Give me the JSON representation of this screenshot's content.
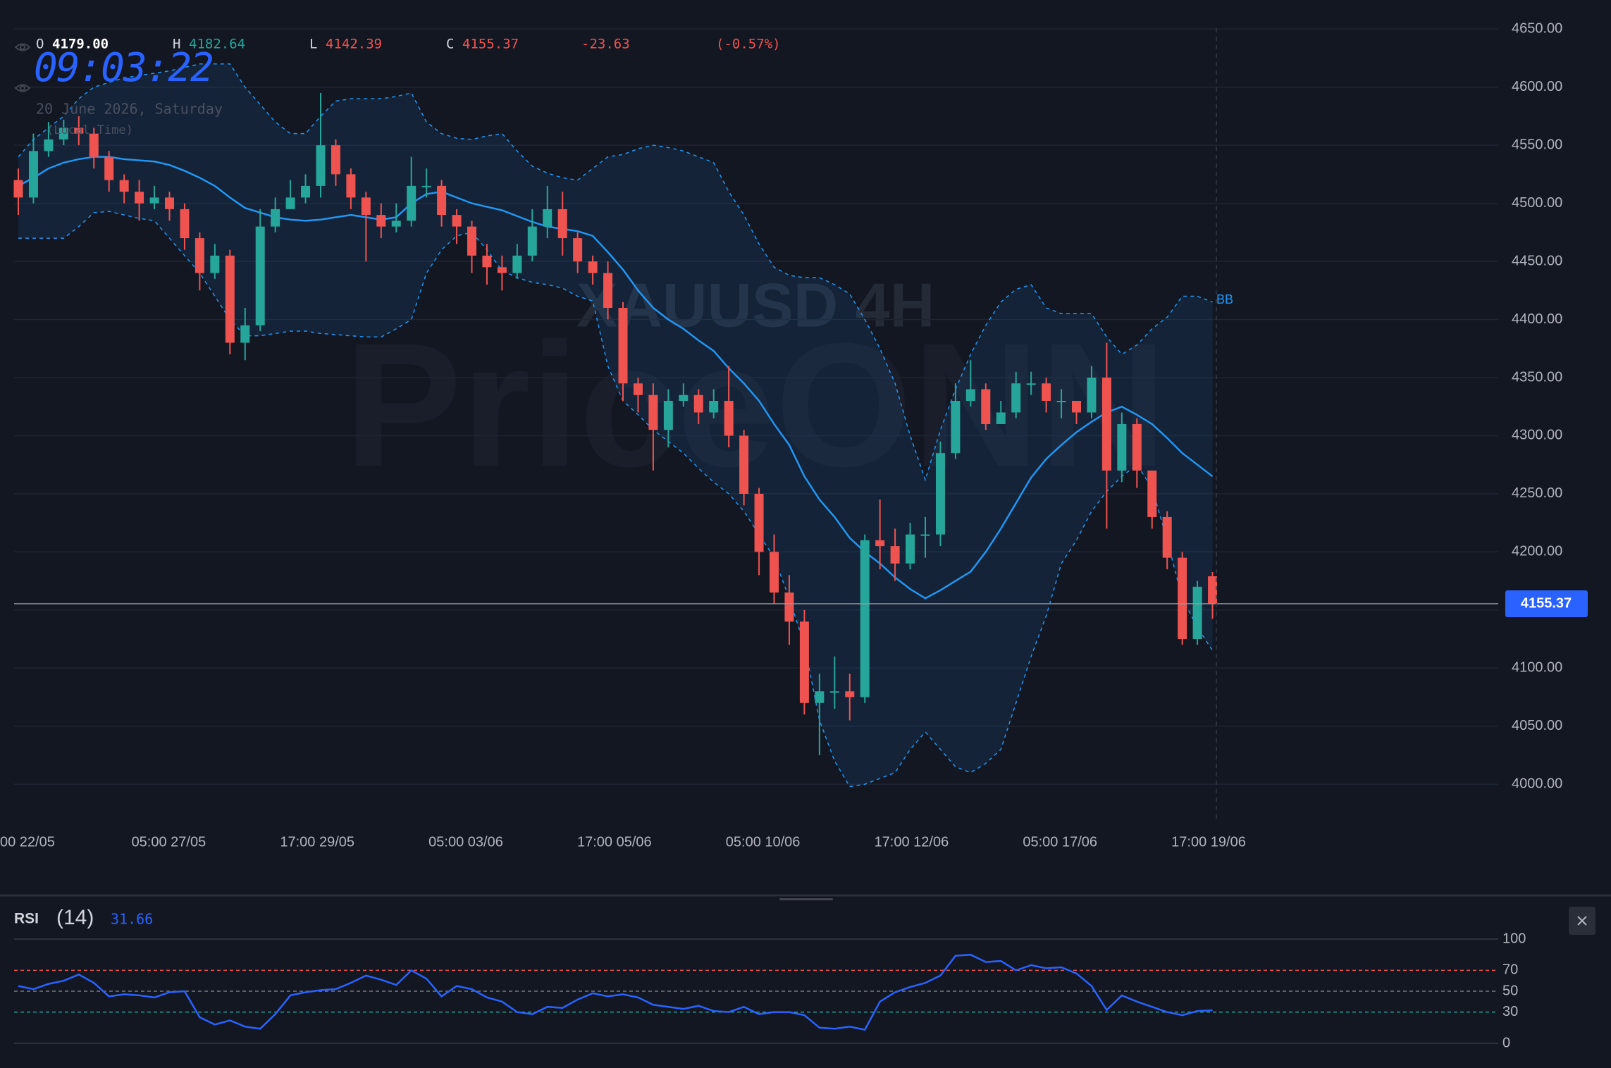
{
  "legend": {
    "labels": [
      "O",
      "H",
      "L",
      "C"
    ],
    "values": [
      "4179.00",
      "4182.64",
      "4142.39",
      "4155.37"
    ],
    "change": "-23.63",
    "change_pct": "(-0.57%)"
  },
  "clock": {
    "time": "09:03:22",
    "date": "20 June 2026, Saturday",
    "zone": "(Local Time)"
  },
  "chart_data": {
    "type": "candlestick",
    "symbol_watermark": "XAUUSD 4H",
    "brand_watermark": "PriceONN",
    "up_color": "#26a69a",
    "down_color": "#ef5350",
    "grid": true,
    "x_labels": [
      "00 22/05",
      "05:00 27/05",
      "17:00 29/05",
      "05:00 03/06",
      "17:00 05/06",
      "05:00 10/06",
      "17:00 12/06",
      "05:00 17/06",
      "17:00 19/06"
    ],
    "open": [
      4520,
      4505,
      4545,
      4555,
      4565,
      4560,
      4540,
      4520,
      4510,
      4500,
      4505,
      4495,
      4470,
      4440,
      4455,
      4380,
      4395,
      4480,
      4495,
      4505,
      4515,
      4550,
      4525,
      4505,
      4490,
      4480,
      4485,
      4515,
      4515,
      4490,
      4480,
      4455,
      4445,
      4440,
      4455,
      4480,
      4495,
      4470,
      4450,
      4440,
      4410,
      4345,
      4335,
      4305,
      4330,
      4335,
      4320,
      4330,
      4300,
      4250,
      4200,
      4165,
      4140,
      4070,
      4080,
      4080,
      4075,
      4210,
      4205,
      4190,
      4215,
      4215,
      4285,
      4330,
      4340,
      4310,
      4320,
      4345,
      4345,
      4330,
      4330,
      4320,
      4350,
      4270,
      4310,
      4270,
      4230,
      4195,
      4125,
      4179
    ],
    "high": [
      4530,
      4560,
      4570,
      4572,
      4575,
      4565,
      4545,
      4525,
      4520,
      4515,
      4510,
      4500,
      4475,
      4465,
      4460,
      4410,
      4495,
      4505,
      4520,
      4525,
      4595,
      4555,
      4530,
      4510,
      4500,
      4500,
      4540,
      4530,
      4520,
      4495,
      4485,
      4465,
      4455,
      4465,
      4495,
      4515,
      4510,
      4475,
      4455,
      4450,
      4415,
      4350,
      4345,
      4340,
      4345,
      4340,
      4340,
      4360,
      4305,
      4255,
      4215,
      4180,
      4150,
      4095,
      4110,
      4095,
      4215,
      4245,
      4220,
      4225,
      4230,
      4295,
      4345,
      4365,
      4345,
      4330,
      4355,
      4355,
      4350,
      4340,
      4330,
      4360,
      4380,
      4320,
      4315,
      4270,
      4235,
      4200,
      4175,
      4182.64
    ],
    "low": [
      4490,
      4500,
      4540,
      4550,
      4550,
      4530,
      4510,
      4500,
      4485,
      4495,
      4485,
      4460,
      4425,
      4435,
      4370,
      4365,
      4390,
      4475,
      4495,
      4500,
      4505,
      4515,
      4495,
      4450,
      4470,
      4475,
      4480,
      4505,
      4480,
      4465,
      4440,
      4430,
      4425,
      4435,
      4450,
      4470,
      4455,
      4440,
      4430,
      4400,
      4330,
      4320,
      4270,
      4290,
      4325,
      4310,
      4315,
      4290,
      4240,
      4180,
      4155,
      4120,
      4060,
      4025,
      4065,
      4055,
      4070,
      4185,
      4175,
      4185,
      4195,
      4205,
      4280,
      4325,
      4305,
      4310,
      4315,
      4335,
      4320,
      4315,
      4310,
      4315,
      4220,
      4260,
      4255,
      4220,
      4185,
      4120,
      4120,
      4142.39
    ],
    "close": [
      4505,
      4545,
      4555,
      4565,
      4560,
      4540,
      4520,
      4510,
      4500,
      4505,
      4495,
      4470,
      4440,
      4455,
      4380,
      4395,
      4480,
      4495,
      4505,
      4515,
      4550,
      4525,
      4505,
      4490,
      4480,
      4485,
      4515,
      4515,
      4490,
      4480,
      4455,
      4445,
      4440,
      4455,
      4480,
      4495,
      4470,
      4450,
      4440,
      4410,
      4345,
      4335,
      4305,
      4330,
      4335,
      4320,
      4330,
      4300,
      4250,
      4200,
      4165,
      4140,
      4070,
      4080,
      4080,
      4075,
      4210,
      4205,
      4190,
      4215,
      4215,
      4285,
      4330,
      4340,
      4310,
      4320,
      4345,
      4345,
      4330,
      4330,
      4320,
      4350,
      4270,
      4310,
      4270,
      4230,
      4195,
      4125,
      4170,
      4155.37
    ],
    "ylim": [
      3968,
      4675
    ],
    "yticks": [
      {
        "value": 4000,
        "label": "4000.00"
      },
      {
        "value": 4050,
        "label": "4050.00"
      },
      {
        "value": 4100,
        "label": "4100.00"
      },
      {
        "value": 4150,
        "label": "4150.00"
      },
      {
        "value": 4200,
        "label": "4200.00"
      },
      {
        "value": 4250,
        "label": "4250.00"
      },
      {
        "value": 4300,
        "label": "4300.00"
      },
      {
        "value": 4350,
        "label": "4350.00"
      },
      {
        "value": 4400,
        "label": "4400.00"
      },
      {
        "value": 4450,
        "label": "4450.00"
      },
      {
        "value": 4500,
        "label": "4500.00"
      },
      {
        "value": 4550,
        "label": "4550.00"
      },
      {
        "value": 4600,
        "label": "4600.00"
      },
      {
        "value": 4650,
        "label": "4650.00"
      }
    ],
    "last_price": {
      "value": 4155.37,
      "label": "4155.37"
    },
    "bollinger": {
      "name": "BB",
      "color": "#2196f3",
      "upper": [
        4540,
        4555,
        4565,
        4575,
        4590,
        4600,
        4604,
        4608,
        4610,
        4612,
        4614,
        4617,
        4620,
        4620,
        4620,
        4600,
        4585,
        4570,
        4560,
        4560,
        4575,
        4588,
        4590,
        4590,
        4590,
        4592,
        4595,
        4570,
        4560,
        4556,
        4555,
        4558,
        4560,
        4545,
        4532,
        4526,
        4522,
        4520,
        4530,
        4540,
        4542,
        4547,
        4550,
        4548,
        4545,
        4540,
        4535,
        4510,
        4490,
        4465,
        4445,
        4438,
        4436,
        4436,
        4430,
        4422,
        4400,
        4375,
        4345,
        4300,
        4262,
        4305,
        4340,
        4370,
        4395,
        4415,
        4426,
        4430,
        4410,
        4405,
        4405,
        4405,
        4385,
        4370,
        4378,
        4392,
        4402,
        4420,
        4420,
        4415
      ],
      "middle": [
        4515,
        4522,
        4530,
        4535,
        4538,
        4540,
        4540,
        4538,
        4537,
        4536,
        4533,
        4528,
        4522,
        4515,
        4505,
        4496,
        4492,
        4488,
        4486,
        4485,
        4486,
        4488,
        4490,
        4488,
        4486,
        4488,
        4500,
        4508,
        4510,
        4505,
        4500,
        4497,
        4494,
        4489,
        4484,
        4480,
        4478,
        4476,
        4472,
        4458,
        4443,
        4425,
        4410,
        4400,
        4392,
        4382,
        4373,
        4358,
        4345,
        4330,
        4310,
        4292,
        4265,
        4245,
        4230,
        4212,
        4200,
        4190,
        4178,
        4168,
        4160,
        4167,
        4175,
        4183,
        4200,
        4220,
        4242,
        4264,
        4280,
        4292,
        4303,
        4312,
        4320,
        4325,
        4318,
        4310,
        4298,
        4285,
        4275,
        4265
      ],
      "lower": [
        4470,
        4470,
        4470,
        4470,
        4480,
        4492,
        4493,
        4490,
        4487,
        4485,
        4470,
        4455,
        4440,
        4420,
        4400,
        4386,
        4386,
        4388,
        4390,
        4390,
        4388,
        4387,
        4386,
        4385,
        4385,
        4392,
        4400,
        4440,
        4460,
        4472,
        4475,
        4460,
        4442,
        4436,
        4432,
        4430,
        4427,
        4420,
        4416,
        4360,
        4330,
        4318,
        4305,
        4295,
        4285,
        4272,
        4260,
        4250,
        4235,
        4215,
        4195,
        4160,
        4120,
        4055,
        4020,
        3998,
        4000,
        4005,
        4010,
        4030,
        4045,
        4030,
        4015,
        4010,
        4018,
        4030,
        4070,
        4110,
        4145,
        4190,
        4210,
        4235,
        4252,
        4265,
        4275,
        4255,
        4210,
        4160,
        4135,
        4115
      ]
    },
    "rsi": {
      "name": "RSI",
      "period_label": "(14)",
      "value_label": "31.66",
      "color": "#2962ff",
      "ylim": [
        0,
        100
      ],
      "yticks": [
        0,
        30,
        50,
        70,
        100
      ],
      "ytick_colors": [
        "#363a45",
        "#26a69a",
        "#787b86",
        "#ef5350",
        "#363a45"
      ],
      "values": [
        55,
        52,
        57,
        60,
        66,
        58,
        45,
        47,
        46,
        44,
        49,
        50,
        25,
        18,
        22,
        16,
        14,
        28,
        46,
        49,
        51,
        52,
        58,
        65,
        61,
        56,
        70,
        62,
        45,
        55,
        52,
        44,
        40,
        30,
        28,
        35,
        34,
        42,
        48,
        45,
        47,
        44,
        37,
        35,
        33,
        36,
        31,
        30,
        35,
        28,
        30,
        30,
        27,
        15,
        14,
        16,
        13,
        40,
        49,
        54,
        58,
        65,
        84,
        85,
        78,
        79,
        70,
        75,
        72,
        73,
        67,
        55,
        32,
        46,
        40,
        35,
        30,
        27,
        31,
        31.66
      ]
    }
  }
}
